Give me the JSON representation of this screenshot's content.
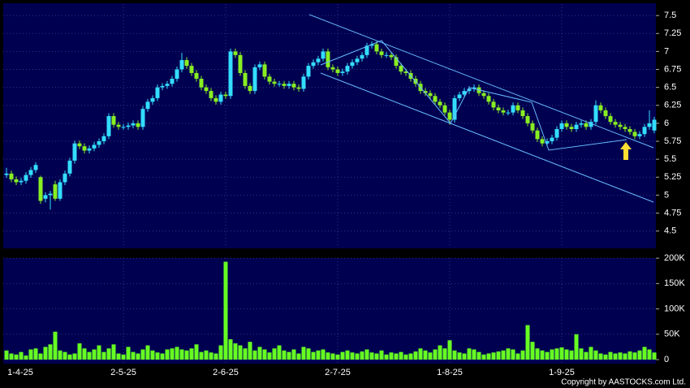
{
  "chart_data": {
    "type": "candlestick",
    "categories": [
      "1-4-25",
      null,
      null,
      null,
      null,
      null,
      null,
      null,
      null,
      null,
      null,
      null,
      null,
      null,
      null,
      null,
      null,
      null,
      null,
      null,
      null,
      null,
      null,
      null,
      "2-5-25",
      null,
      null,
      null,
      null,
      null,
      null,
      null,
      null,
      null,
      null,
      null,
      null,
      null,
      null,
      null,
      null,
      null,
      null,
      null,
      null,
      "2-6-25",
      null,
      null,
      null,
      null,
      null,
      null,
      null,
      null,
      null,
      null,
      null,
      null,
      null,
      null,
      null,
      null,
      null,
      null,
      null,
      null,
      null,
      null,
      "2-7-25",
      null,
      null,
      null,
      null,
      null,
      null,
      null,
      null,
      null,
      null,
      null,
      null,
      null,
      null,
      null,
      null,
      null,
      null,
      null,
      null,
      null,
      null,
      "1-8-25",
      null,
      null,
      null,
      null,
      null,
      null,
      null,
      null,
      null,
      null,
      null,
      null,
      null,
      null,
      null,
      null,
      null,
      null,
      null,
      null,
      null,
      null,
      "1-9-25",
      null,
      null,
      null,
      null,
      null,
      null,
      null,
      null,
      null,
      null,
      null,
      null,
      null,
      null,
      null,
      null,
      null,
      null,
      null
    ],
    "open": [
      5.28,
      5.3,
      5.22,
      5.18,
      5.2,
      5.28,
      5.35,
      5.25,
      4.95,
      5.0,
      5.15,
      4.95,
      5.18,
      5.3,
      5.48,
      5.72,
      5.68,
      5.62,
      5.65,
      5.7,
      5.75,
      5.82,
      6.1,
      5.98,
      5.95,
      5.95,
      5.97,
      6.0,
      5.95,
      6.2,
      6.3,
      6.35,
      6.5,
      6.52,
      6.55,
      6.62,
      6.75,
      6.88,
      6.8,
      6.7,
      6.62,
      6.5,
      6.45,
      6.35,
      6.3,
      6.4,
      6.38,
      7.0,
      6.95,
      6.7,
      6.52,
      6.45,
      6.78,
      6.82,
      6.65,
      6.58,
      6.55,
      6.55,
      6.52,
      6.55,
      6.5,
      6.48,
      6.65,
      6.8,
      6.85,
      6.9,
      7.0,
      6.78,
      6.75,
      6.7,
      6.72,
      6.8,
      6.85,
      6.9,
      6.95,
      7.08,
      7.1,
      7.0,
      6.95,
      6.95,
      6.92,
      6.8,
      6.72,
      6.7,
      6.62,
      6.55,
      6.45,
      6.42,
      6.38,
      6.3,
      6.25,
      6.15,
      6.05,
      6.35,
      6.4,
      6.45,
      6.48,
      6.5,
      6.42,
      6.38,
      6.3,
      6.22,
      6.18,
      6.15,
      6.15,
      6.25,
      6.18,
      6.1,
      6.0,
      5.9,
      5.78,
      5.72,
      5.75,
      5.8,
      5.92,
      6.0,
      5.95,
      5.92,
      5.98,
      6.0,
      5.95,
      6.02,
      6.25,
      6.18,
      6.1,
      6.02,
      5.98,
      5.95,
      5.92,
      5.88,
      5.82,
      5.85,
      5.95,
      5.9
    ],
    "high": [
      5.38,
      5.34,
      5.26,
      5.24,
      5.32,
      5.39,
      5.46,
      5.27,
      5.04,
      5.06,
      5.2,
      5.22,
      5.34,
      5.52,
      5.76,
      5.76,
      5.72,
      5.69,
      5.74,
      5.79,
      5.86,
      6.14,
      6.14,
      6.02,
      5.99,
      6.01,
      6.04,
      6.04,
      6.24,
      6.34,
      6.39,
      6.54,
      6.56,
      6.59,
      6.66,
      6.79,
      6.98,
      6.92,
      6.84,
      6.74,
      6.66,
      6.54,
      6.49,
      6.39,
      6.44,
      6.44,
      7.04,
      7.04,
      6.99,
      6.74,
      6.56,
      6.82,
      6.86,
      6.86,
      6.69,
      6.62,
      6.59,
      6.59,
      6.59,
      6.59,
      6.54,
      6.69,
      6.84,
      6.89,
      6.94,
      7.04,
      7.04,
      6.82,
      6.79,
      6.76,
      6.84,
      6.89,
      6.94,
      6.99,
      7.12,
      7.14,
      7.14,
      7.04,
      6.99,
      6.99,
      6.96,
      6.84,
      6.76,
      6.74,
      6.66,
      6.59,
      6.49,
      6.46,
      6.42,
      6.34,
      6.29,
      6.19,
      6.39,
      6.44,
      6.49,
      6.52,
      6.54,
      6.54,
      6.46,
      6.42,
      6.34,
      6.26,
      6.22,
      6.19,
      6.29,
      6.29,
      6.22,
      6.14,
      6.04,
      5.94,
      5.82,
      5.79,
      5.84,
      5.96,
      6.04,
      6.04,
      5.99,
      6.02,
      6.04,
      6.04,
      6.06,
      6.32,
      6.29,
      6.22,
      6.14,
      6.06,
      6.02,
      5.99,
      5.96,
      5.92,
      5.89,
      5.99,
      6.18,
      6.09
    ],
    "low": [
      5.24,
      5.18,
      5.14,
      5.14,
      5.16,
      5.24,
      5.31,
      4.88,
      4.9,
      4.8,
      4.92,
      4.92,
      5.14,
      5.26,
      5.44,
      5.64,
      5.58,
      5.58,
      5.61,
      5.66,
      5.71,
      5.78,
      5.94,
      5.91,
      5.91,
      5.91,
      5.93,
      5.91,
      5.91,
      6.16,
      6.26,
      6.31,
      6.46,
      6.48,
      6.51,
      6.58,
      6.71,
      6.76,
      6.66,
      6.58,
      6.46,
      6.41,
      6.31,
      6.26,
      6.26,
      6.34,
      6.34,
      6.91,
      6.66,
      6.48,
      6.41,
      6.41,
      6.74,
      6.61,
      6.54,
      6.51,
      6.51,
      6.48,
      6.48,
      6.46,
      6.44,
      6.44,
      6.61,
      6.76,
      6.81,
      6.86,
      6.74,
      6.71,
      6.66,
      6.66,
      6.68,
      6.76,
      6.81,
      6.86,
      6.91,
      7.04,
      6.96,
      6.91,
      6.91,
      6.88,
      6.76,
      6.68,
      6.66,
      6.58,
      6.51,
      6.41,
      6.38,
      6.34,
      6.26,
      6.21,
      6.11,
      5.98,
      6.01,
      6.31,
      6.36,
      6.41,
      6.44,
      6.38,
      6.34,
      6.26,
      6.18,
      6.14,
      6.11,
      6.11,
      6.11,
      6.14,
      6.06,
      5.96,
      5.86,
      5.74,
      5.68,
      5.68,
      5.71,
      5.76,
      5.88,
      5.91,
      5.88,
      5.88,
      5.94,
      5.91,
      5.91,
      5.98,
      6.14,
      6.06,
      5.98,
      5.94,
      5.91,
      5.88,
      5.84,
      5.78,
      5.78,
      5.81,
      5.91,
      5.86
    ],
    "close": [
      5.3,
      5.22,
      5.18,
      5.2,
      5.28,
      5.35,
      5.42,
      4.92,
      5.0,
      5.02,
      4.95,
      5.18,
      5.3,
      5.48,
      5.72,
      5.68,
      5.62,
      5.65,
      5.7,
      5.75,
      5.82,
      6.1,
      5.98,
      5.95,
      5.95,
      5.97,
      6.0,
      5.95,
      6.2,
      6.3,
      6.35,
      6.5,
      6.52,
      6.55,
      6.62,
      6.75,
      6.88,
      6.8,
      6.7,
      6.62,
      6.5,
      6.45,
      6.35,
      6.3,
      6.4,
      6.38,
      7.0,
      6.95,
      6.7,
      6.52,
      6.45,
      6.78,
      6.82,
      6.65,
      6.58,
      6.55,
      6.55,
      6.52,
      6.55,
      6.5,
      6.48,
      6.65,
      6.8,
      6.85,
      6.9,
      7.0,
      6.78,
      6.75,
      6.7,
      6.72,
      6.8,
      6.85,
      6.9,
      6.95,
      7.08,
      7.1,
      7.0,
      6.95,
      6.95,
      6.92,
      6.8,
      6.72,
      6.7,
      6.62,
      6.55,
      6.45,
      6.42,
      6.38,
      6.3,
      6.25,
      6.15,
      6.05,
      6.35,
      6.4,
      6.45,
      6.48,
      6.5,
      6.42,
      6.38,
      6.3,
      6.22,
      6.18,
      6.15,
      6.15,
      6.25,
      6.18,
      6.1,
      6.0,
      5.9,
      5.78,
      5.72,
      5.75,
      5.8,
      5.92,
      6.0,
      5.95,
      5.92,
      5.98,
      6.0,
      5.95,
      6.02,
      6.25,
      6.18,
      6.1,
      6.02,
      5.98,
      5.95,
      5.92,
      5.88,
      5.82,
      5.85,
      5.95,
      6.0,
      6.05
    ],
    "volume": [
      18000,
      12000,
      10000,
      15000,
      8000,
      20000,
      22000,
      12000,
      25000,
      30000,
      55000,
      18000,
      15000,
      10000,
      12000,
      32000,
      22000,
      15000,
      20000,
      28000,
      15000,
      22000,
      30000,
      12000,
      10000,
      25000,
      15000,
      12000,
      20000,
      28000,
      18000,
      14000,
      12000,
      20000,
      22000,
      25000,
      20000,
      18000,
      22000,
      30000,
      15000,
      18000,
      14000,
      12000,
      28000,
      193000,
      40000,
      32000,
      28000,
      22000,
      35000,
      18000,
      25000,
      20000,
      14000,
      22000,
      28000,
      18000,
      15000,
      20000,
      12000,
      25000,
      22000,
      15000,
      18000,
      20000,
      14000,
      12000,
      10000,
      15000,
      18000,
      14000,
      12000,
      16000,
      20000,
      14000,
      12000,
      18000,
      10000,
      14000,
      12000,
      15000,
      10000,
      12000,
      16000,
      22000,
      18000,
      14000,
      20000,
      28000,
      22000,
      38000,
      18000,
      14000,
      12000,
      22000,
      20000,
      15000,
      10000,
      12000,
      14000,
      16000,
      18000,
      22000,
      20000,
      12000,
      18000,
      68000,
      35000,
      22000,
      18000,
      15000,
      20000,
      22000,
      24000,
      20000,
      18000,
      50000,
      22000,
      15000,
      25000,
      18000,
      12000,
      10000,
      15000,
      12000,
      14000,
      12000,
      16000,
      14000,
      18000,
      25000,
      20000,
      14000
    ],
    "ylim": [
      4.27,
      7.66
    ],
    "yticks": [
      4.5,
      4.75,
      5,
      5.25,
      5.5,
      5.75,
      6,
      6.25,
      6.5,
      6.75,
      7,
      7.25,
      7.5
    ],
    "volume_ylim": [
      0,
      205000
    ],
    "volume_yticks": [
      {
        "value": 0,
        "label": "0"
      },
      {
        "value": 50000,
        "label": "50K"
      },
      {
        "value": 100000,
        "label": "100K"
      },
      {
        "value": 150000,
        "label": "150K"
      },
      {
        "value": 200000,
        "label": "200K"
      }
    ],
    "up_color": "#33ddff",
    "down_color": "#88ee22",
    "volume_color": "#66ff22",
    "grid": true,
    "copyright": "Copyright by AASTOCKS.com Ltd."
  }
}
